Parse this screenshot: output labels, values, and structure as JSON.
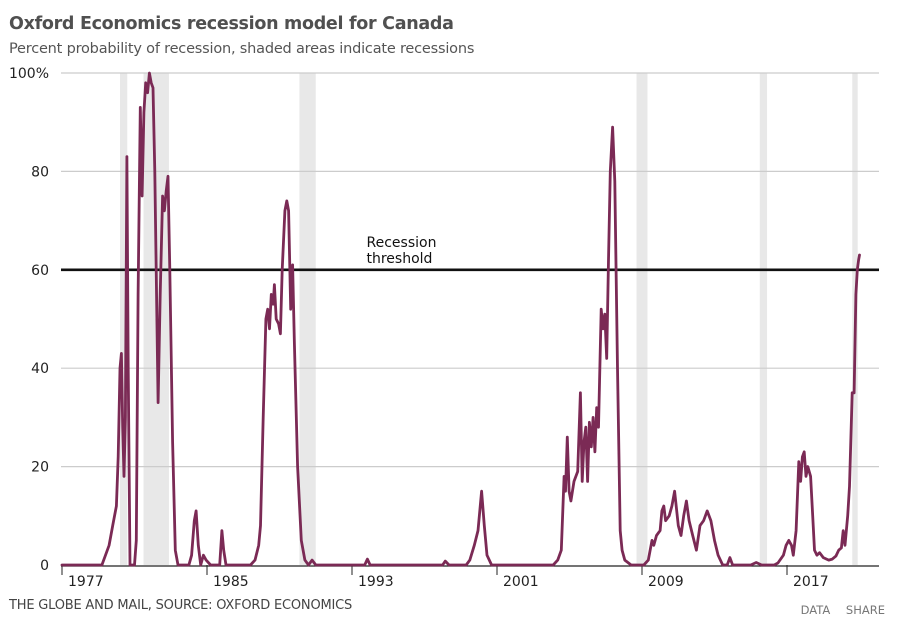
{
  "header": {
    "title": "Oxford Economics recession model for Canada",
    "subtitle": "Percent probability of recession, shaded areas indicate recessions"
  },
  "footer": {
    "source": "THE GLOBE AND MAIL, SOURCE: OXFORD ECONOMICS",
    "data_label": "DATA",
    "share_label": "SHARE"
  },
  "colors": {
    "line": "#7b2a55",
    "threshold": "#111111",
    "recession_shade": "#e8e8e8",
    "grid": "#cccccc"
  },
  "chart_data": {
    "type": "line",
    "title": "Oxford Economics recession model for Canada",
    "subtitle": "Percent probability of recession, shaded areas indicate recessions",
    "xlabel": "",
    "ylabel": "Percent probability of recession",
    "xlim": [
      1977,
      2022.1
    ],
    "ylim": [
      0,
      100
    ],
    "grid": true,
    "y_ticks": [
      {
        "value": 0,
        "label": "0"
      },
      {
        "value": 20,
        "label": "20"
      },
      {
        "value": 40,
        "label": "40"
      },
      {
        "value": 60,
        "label": "60"
      },
      {
        "value": 80,
        "label": "80"
      },
      {
        "value": 100,
        "label": "100%"
      }
    ],
    "x_ticks": [
      {
        "value": 1977,
        "label": "1977"
      },
      {
        "value": 1985,
        "label": "1985"
      },
      {
        "value": 1993,
        "label": "1993"
      },
      {
        "value": 2001,
        "label": "2001"
      },
      {
        "value": 2009,
        "label": "2009"
      },
      {
        "value": 2017,
        "label": "2017"
      }
    ],
    "threshold": {
      "value": 60,
      "label_lines": [
        "Recession",
        "threshold"
      ],
      "label_year": 1993.8
    },
    "recessions": [
      [
        1980.2,
        1980.6
      ],
      [
        1981.5,
        1982.9
      ],
      [
        1990.1,
        1991.0
      ],
      [
        2008.7,
        2009.3
      ],
      [
        2015.5,
        2015.9
      ],
      [
        2020.6,
        2020.9
      ]
    ],
    "series": [
      {
        "name": "Recession probability",
        "points": [
          [
            1977.0,
            0
          ],
          [
            1978.0,
            0
          ],
          [
            1979.2,
            0
          ],
          [
            1979.4,
            2
          ],
          [
            1979.6,
            4
          ],
          [
            1979.8,
            8
          ],
          [
            1980.0,
            12
          ],
          [
            1980.1,
            22
          ],
          [
            1980.2,
            40
          ],
          [
            1980.28,
            43
          ],
          [
            1980.35,
            28
          ],
          [
            1980.42,
            18
          ],
          [
            1980.5,
            30
          ],
          [
            1980.58,
            83
          ],
          [
            1980.65,
            40
          ],
          [
            1980.75,
            0
          ],
          [
            1981.0,
            0
          ],
          [
            1981.1,
            5
          ],
          [
            1981.2,
            55
          ],
          [
            1981.32,
            93
          ],
          [
            1981.42,
            75
          ],
          [
            1981.52,
            92
          ],
          [
            1981.62,
            98
          ],
          [
            1981.72,
            96
          ],
          [
            1981.82,
            100
          ],
          [
            1981.92,
            98
          ],
          [
            1982.02,
            97
          ],
          [
            1982.12,
            80
          ],
          [
            1982.3,
            33
          ],
          [
            1982.42,
            55
          ],
          [
            1982.55,
            75
          ],
          [
            1982.65,
            72
          ],
          [
            1982.75,
            76
          ],
          [
            1982.85,
            79
          ],
          [
            1982.95,
            60
          ],
          [
            1983.1,
            25
          ],
          [
            1983.25,
            3
          ],
          [
            1983.4,
            0
          ],
          [
            1984.0,
            0
          ],
          [
            1984.15,
            2
          ],
          [
            1984.3,
            9
          ],
          [
            1984.4,
            11
          ],
          [
            1984.52,
            4
          ],
          [
            1984.65,
            0
          ],
          [
            1984.8,
            2
          ],
          [
            1984.95,
            1
          ],
          [
            1985.2,
            0
          ],
          [
            1985.7,
            0
          ],
          [
            1985.82,
            7
          ],
          [
            1985.92,
            3
          ],
          [
            1986.05,
            0
          ],
          [
            1987.4,
            0
          ],
          [
            1987.65,
            1
          ],
          [
            1987.85,
            4
          ],
          [
            1987.95,
            8
          ],
          [
            1988.1,
            30
          ],
          [
            1988.25,
            50
          ],
          [
            1988.35,
            52
          ],
          [
            1988.45,
            48
          ],
          [
            1988.55,
            55
          ],
          [
            1988.65,
            53
          ],
          [
            1988.72,
            57
          ],
          [
            1988.82,
            50
          ],
          [
            1988.95,
            49
          ],
          [
            1989.05,
            47
          ],
          [
            1989.15,
            60
          ],
          [
            1989.3,
            72
          ],
          [
            1989.4,
            74
          ],
          [
            1989.5,
            72
          ],
          [
            1989.62,
            52
          ],
          [
            1989.72,
            61
          ],
          [
            1989.82,
            45
          ],
          [
            1990.0,
            20
          ],
          [
            1990.2,
            5
          ],
          [
            1990.4,
            1
          ],
          [
            1990.6,
            0
          ],
          [
            1990.8,
            1
          ],
          [
            1991.0,
            0
          ],
          [
            1993.7,
            0
          ],
          [
            1993.85,
            1.2
          ],
          [
            1994.0,
            0
          ],
          [
            1998.0,
            0
          ],
          [
            1998.15,
            0.8
          ],
          [
            1998.35,
            0
          ],
          [
            1999.3,
            0
          ],
          [
            1999.5,
            1
          ],
          [
            1999.75,
            4
          ],
          [
            1999.95,
            7
          ],
          [
            2000.15,
            15
          ],
          [
            2000.3,
            8
          ],
          [
            2000.45,
            2
          ],
          [
            2000.7,
            0
          ],
          [
            2003.0,
            0
          ],
          [
            2004.1,
            0
          ],
          [
            2004.35,
            1
          ],
          [
            2004.55,
            3
          ],
          [
            2004.7,
            18
          ],
          [
            2004.78,
            15
          ],
          [
            2004.88,
            26
          ],
          [
            2004.98,
            15
          ],
          [
            2005.08,
            13
          ],
          [
            2005.25,
            17
          ],
          [
            2005.45,
            19
          ],
          [
            2005.6,
            35
          ],
          [
            2005.7,
            17
          ],
          [
            2005.8,
            25
          ],
          [
            2005.9,
            28
          ],
          [
            2006.0,
            17
          ],
          [
            2006.1,
            29
          ],
          [
            2006.2,
            24
          ],
          [
            2006.3,
            30
          ],
          [
            2006.4,
            23
          ],
          [
            2006.5,
            32
          ],
          [
            2006.6,
            28
          ],
          [
            2006.75,
            52
          ],
          [
            2006.85,
            48
          ],
          [
            2006.95,
            51
          ],
          [
            2007.05,
            42
          ],
          [
            2007.15,
            62
          ],
          [
            2007.25,
            80
          ],
          [
            2007.38,
            89
          ],
          [
            2007.5,
            78
          ],
          [
            2007.65,
            40
          ],
          [
            2007.8,
            7
          ],
          [
            2007.9,
            3
          ],
          [
            2008.05,
            1
          ],
          [
            2008.4,
            0
          ],
          [
            2009.1,
            0
          ],
          [
            2009.35,
            1
          ],
          [
            2009.55,
            5
          ],
          [
            2009.65,
            4
          ],
          [
            2009.8,
            6
          ],
          [
            2010.0,
            7
          ],
          [
            2010.1,
            11
          ],
          [
            2010.2,
            12
          ],
          [
            2010.3,
            9
          ],
          [
            2010.5,
            10
          ],
          [
            2010.65,
            12
          ],
          [
            2010.8,
            15
          ],
          [
            2011.0,
            8
          ],
          [
            2011.15,
            6
          ],
          [
            2011.3,
            10
          ],
          [
            2011.45,
            13
          ],
          [
            2011.6,
            9
          ],
          [
            2011.8,
            6
          ],
          [
            2012.0,
            3
          ],
          [
            2012.2,
            8
          ],
          [
            2012.4,
            9
          ],
          [
            2012.6,
            11
          ],
          [
            2012.8,
            9
          ],
          [
            2013.0,
            5
          ],
          [
            2013.2,
            2
          ],
          [
            2013.45,
            0
          ],
          [
            2013.7,
            0
          ],
          [
            2013.85,
            1.5
          ],
          [
            2014.0,
            0
          ],
          [
            2015.0,
            0
          ],
          [
            2015.3,
            0.5
          ],
          [
            2015.6,
            0
          ],
          [
            2016.3,
            0
          ],
          [
            2016.5,
            0.4
          ],
          [
            2016.8,
            2
          ],
          [
            2016.95,
            4
          ],
          [
            2017.1,
            5
          ],
          [
            2017.25,
            4
          ],
          [
            2017.35,
            2
          ],
          [
            2017.5,
            7
          ],
          [
            2017.65,
            21
          ],
          [
            2017.75,
            17
          ],
          [
            2017.85,
            22
          ],
          [
            2017.95,
            23
          ],
          [
            2018.05,
            18
          ],
          [
            2018.15,
            20
          ],
          [
            2018.3,
            18
          ],
          [
            2018.42,
            10
          ],
          [
            2018.52,
            3
          ],
          [
            2018.65,
            2
          ],
          [
            2018.8,
            2.5
          ],
          [
            2019.0,
            1.5
          ],
          [
            2019.3,
            1
          ],
          [
            2019.5,
            1.2
          ],
          [
            2019.7,
            1.8
          ],
          [
            2019.85,
            3
          ],
          [
            2020.0,
            3.5
          ],
          [
            2020.1,
            7
          ],
          [
            2020.2,
            4
          ],
          [
            2020.35,
            10
          ],
          [
            2020.45,
            16
          ],
          [
            2020.6,
            35
          ],
          [
            2020.7,
            35
          ],
          [
            2020.8,
            55
          ],
          [
            2020.88,
            60
          ],
          [
            2020.95,
            62
          ],
          [
            2021.0,
            63
          ]
        ]
      }
    ]
  }
}
